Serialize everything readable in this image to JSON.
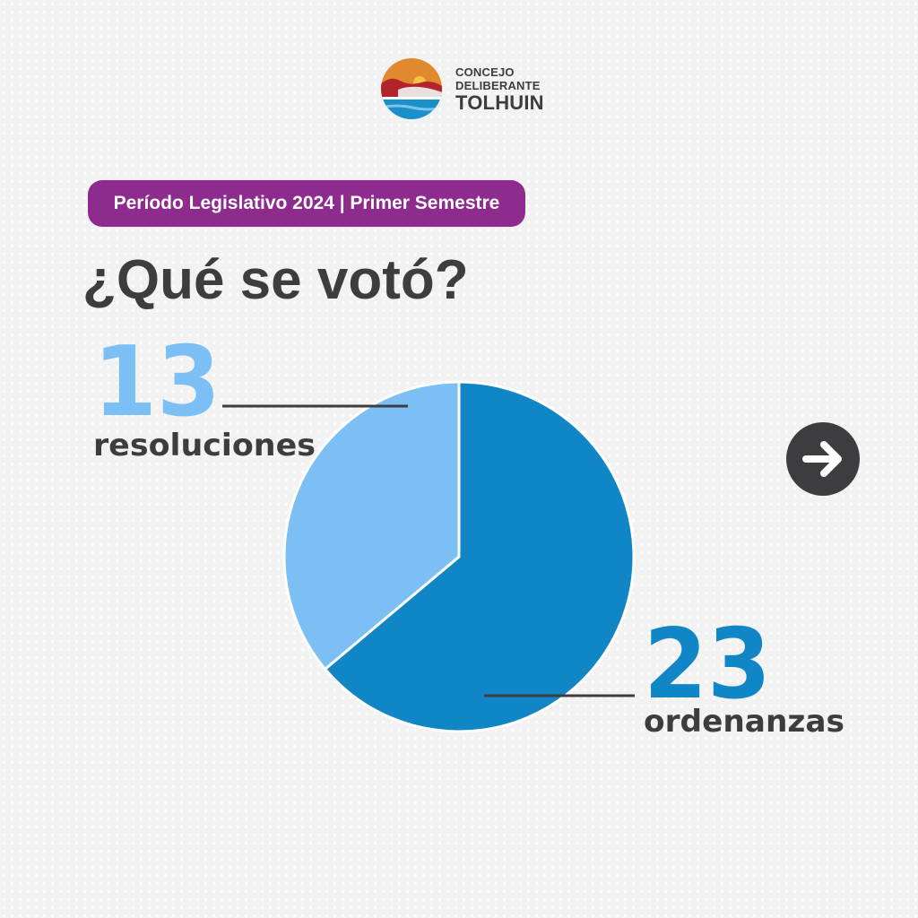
{
  "logo": {
    "line1": "CONCEJO",
    "line2": "DELIBERANTE",
    "line3": "TOLHUIN"
  },
  "period_badge": "Período Legislativo 2024 | Primer Semestre",
  "heading": "¿Qué se votó?",
  "colors": {
    "badge": "#8e2b8e",
    "resoluciones": "#7bbff5",
    "ordenanzas": "#1186c6",
    "text_dark": "#3d3d3f"
  },
  "chart_data": {
    "type": "pie",
    "slices": [
      {
        "label": "ordenanzas",
        "value": 23,
        "value_label": "23",
        "color": "#1186c6"
      },
      {
        "label": "resoluciones",
        "value": 13,
        "value_label": "13",
        "color": "#7bbff5"
      }
    ]
  },
  "next_button_icon": "arrow-right-icon"
}
